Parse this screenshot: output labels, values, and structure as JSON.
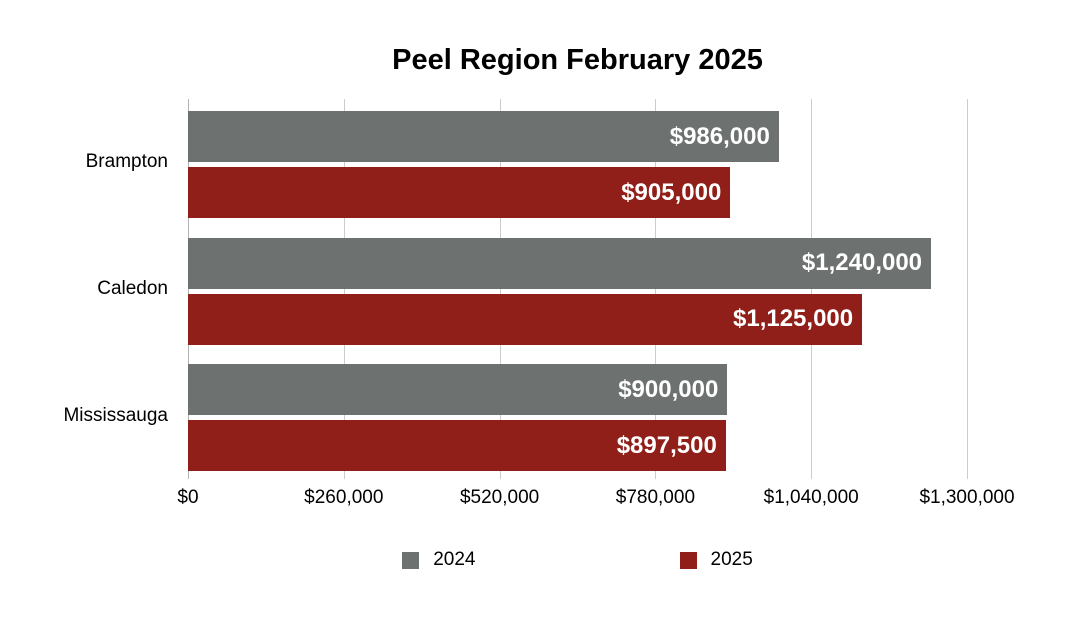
{
  "title": "Peel Region February 2025",
  "chart_data": {
    "type": "bar",
    "orientation": "horizontal",
    "title": "Peel Region February 2025",
    "categories": [
      "Brampton",
      "Caledon",
      "Mississauga"
    ],
    "series": [
      {
        "name": "2024",
        "color": "#6D7271",
        "values": [
          986000,
          1240000,
          900000
        ],
        "labels": [
          "$986,000",
          "$1,240,000",
          "$900,000"
        ]
      },
      {
        "name": "2025",
        "color": "#8F1F18",
        "values": [
          905000,
          1125000,
          897500
        ],
        "labels": [
          "$905,000",
          "$1,125,000",
          "$897,500"
        ]
      }
    ],
    "x_axis": {
      "min": 0,
      "max": 1300000,
      "tick_step": 260000,
      "ticks": [
        {
          "value": 0,
          "label": "$0"
        },
        {
          "value": 260000,
          "label": "$260,000"
        },
        {
          "value": 520000,
          "label": "$520,000"
        },
        {
          "value": 780000,
          "label": "$780,000"
        },
        {
          "value": 1040000,
          "label": "$1,040,000"
        },
        {
          "value": 1300000,
          "label": "$1,300,000"
        }
      ]
    },
    "grid": true,
    "legend": {
      "position": "bottom",
      "items": [
        {
          "label": "2024",
          "color": "#6D7271"
        },
        {
          "label": "2025",
          "color": "#8F1F18"
        }
      ]
    },
    "styles": {
      "gridline_color": "#cccccc",
      "baseline_color": "#b3b3b3",
      "bar_label_color": "#ffffff",
      "text_color": "#000000",
      "background": "#ffffff"
    }
  }
}
